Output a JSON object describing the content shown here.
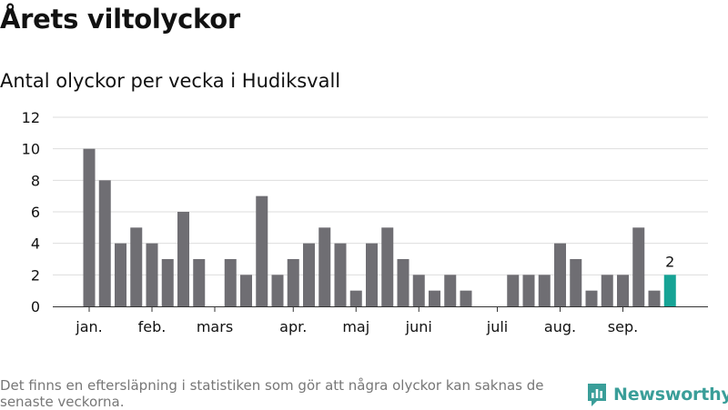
{
  "title": "Årets viltolyckor",
  "subtitle": "Antal olyckor per vecka i Hudiksvall",
  "footnote": "Det finns en eftersläpning i statistiken som gör att några olyckor kan saknas de senaste veckorna.",
  "brand": {
    "name": "Newsworthy",
    "icon": "newsworthy-logo-icon",
    "color": "#3a9e99"
  },
  "chart_data": {
    "type": "bar",
    "title": "Antal olyckor per vecka i Hudiksvall",
    "xlabel": "",
    "ylabel": "",
    "ylim": [
      0,
      12
    ],
    "yticks": [
      0,
      2,
      4,
      6,
      8,
      10,
      12
    ],
    "grid": true,
    "legend": "none",
    "x": [
      1,
      2,
      3,
      4,
      5,
      6,
      7,
      8,
      9,
      10,
      11,
      12,
      13,
      14,
      15,
      16,
      17,
      18,
      19,
      20,
      21,
      22,
      23,
      24,
      25,
      26,
      27,
      28,
      29,
      30,
      31,
      32,
      33,
      34,
      35,
      36,
      37,
      38
    ],
    "values": [
      10,
      8,
      4,
      5,
      4,
      3,
      6,
      3,
      0,
      3,
      2,
      7,
      2,
      3,
      4,
      5,
      4,
      1,
      4,
      5,
      3,
      2,
      1,
      2,
      1,
      0,
      0,
      2,
      2,
      2,
      4,
      3,
      1,
      2,
      2,
      5,
      1,
      2
    ],
    "month_labels": [
      {
        "label": "jan.",
        "at_week": 1
      },
      {
        "label": "feb.",
        "at_week": 5
      },
      {
        "label": "mars",
        "at_week": 9
      },
      {
        "label": "apr.",
        "at_week": 14
      },
      {
        "label": "maj",
        "at_week": 18
      },
      {
        "label": "juni",
        "at_week": 22
      },
      {
        "label": "juli",
        "at_week": 27
      },
      {
        "label": "aug.",
        "at_week": 31
      },
      {
        "label": "sep.",
        "at_week": 35
      }
    ],
    "bar_color": "#6f6e73",
    "highlight_color": "#16a395",
    "highlight_week": 38,
    "highlight_label": "2"
  }
}
